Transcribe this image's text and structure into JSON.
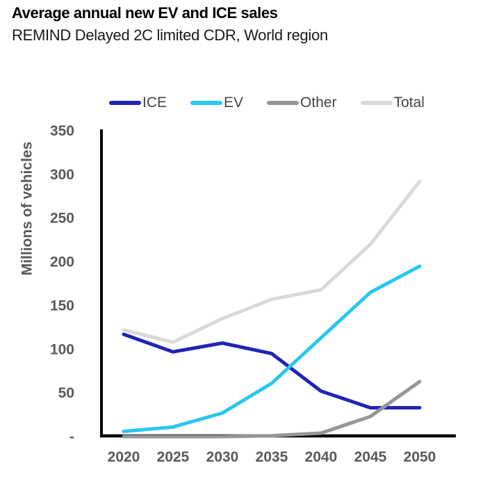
{
  "chart_data": {
    "type": "line",
    "title": "Average annual new EV and ICE sales",
    "subtitle": "REMIND Delayed 2C limited CDR, World region",
    "ylabel": "Millions of vehicles",
    "x_labels": [
      "2020",
      "2025",
      "2030",
      "2035",
      "2040",
      "2045",
      "2050"
    ],
    "series": [
      {
        "name": "ICE",
        "color": "#2124b4",
        "values": [
          117,
          97,
          107,
          95,
          52,
          33,
          33
        ]
      },
      {
        "name": "EV",
        "color": "#29c7f0",
        "values": [
          6,
          11,
          27,
          61,
          113,
          165,
          195
        ]
      },
      {
        "name": "Other",
        "color": "#969696",
        "values": [
          0,
          0,
          0,
          1,
          4,
          23,
          63
        ]
      },
      {
        "name": "Total",
        "color": "#d9d9d9",
        "values": [
          122,
          108,
          135,
          157,
          168,
          220,
          292
        ]
      }
    ],
    "ylim": [
      0,
      350
    ],
    "ytick_step": 50,
    "ytick_labels": [
      "-",
      "50",
      "100",
      "150",
      "200",
      "250",
      "300",
      "350"
    ],
    "grid": false,
    "legend_position": "top",
    "axis_color": "#000000",
    "tick_text_color": "#595959",
    "legend_text_color": "#444444"
  }
}
